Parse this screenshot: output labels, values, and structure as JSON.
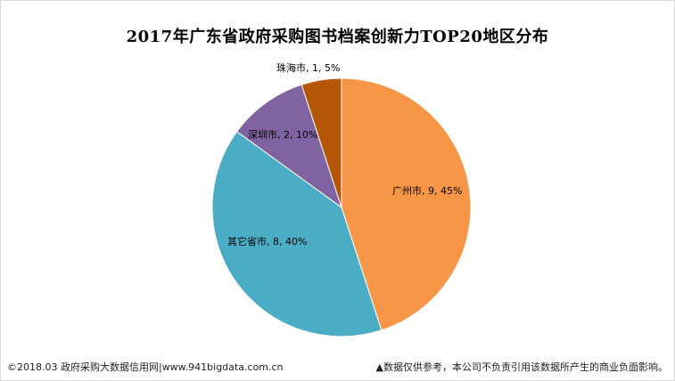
{
  "chart_data": {
    "type": "pie",
    "title": "2017年广东省政府采购图书档案创新力TOP20地区分布",
    "slices": [
      {
        "label": "广州市, 9, 45%",
        "name": "广州市",
        "value": 9,
        "percent": 45,
        "color": "#F79646"
      },
      {
        "label": "其它省市, 8, 40%",
        "name": "其它省市",
        "value": 8,
        "percent": 40,
        "color": "#4BACC6"
      },
      {
        "label": "深圳市, 2, 10%",
        "name": "深圳市",
        "value": 2,
        "percent": 10,
        "color": "#8064A2"
      },
      {
        "label": "珠海市, 1, 5%",
        "name": "珠海市",
        "value": 1,
        "percent": 5,
        "color": "#B65708"
      }
    ],
    "legend": "none",
    "start_angle_deg": 0,
    "direction": "clockwise"
  },
  "footer": {
    "left": "©2018.03 政府采购大数据信用网|www.941bigdata.com.cn",
    "right": "▲数据仅供参考，本公司不负责引用该数据所产生的商业负面影响。"
  }
}
